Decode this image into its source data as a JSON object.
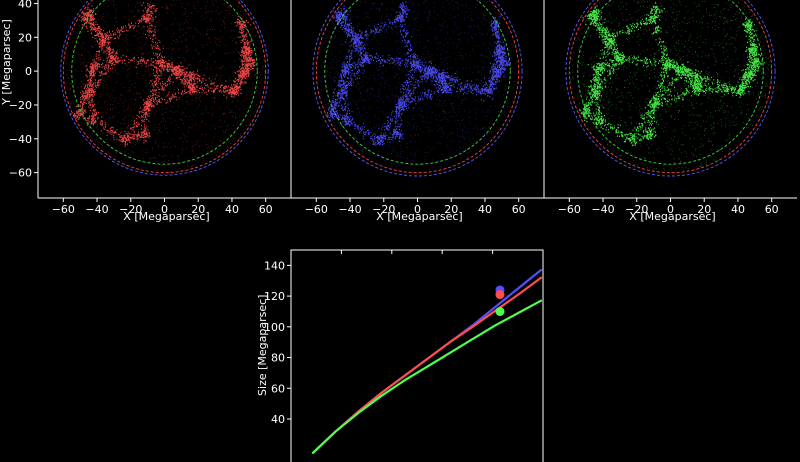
{
  "colors": {
    "red": "#ff4d4d",
    "blue": "#5050ff",
    "green": "#4dff4d",
    "ring_red": "#ff4040",
    "ring_blue": "#5a5aff",
    "ring_green": "#40d040",
    "background": "#000000",
    "foreground": "#ffffff"
  },
  "chart_data": [
    {
      "type": "scatter",
      "xlabel": "X [Megaparsec]",
      "ylabel": "Y [Megaparsec]",
      "xlim": [
        -75,
        75
      ],
      "ylim": [
        -75,
        45
      ],
      "xticks": [
        -60,
        -40,
        -20,
        0,
        20,
        40,
        60
      ],
      "yticks": [
        -60,
        -40,
        -20,
        0,
        20,
        40
      ],
      "color": "red",
      "points": "dense galaxy distribution (filaments) inside circle of radius ~62",
      "rings": [
        {
          "r": 61.5,
          "color": "blue"
        },
        {
          "r": 60,
          "color": "red"
        },
        {
          "r": 55,
          "color": "green"
        }
      ]
    },
    {
      "type": "scatter",
      "xlabel": "X [Megaparsec]",
      "xlim": [
        -75,
        75
      ],
      "ylim": [
        -75,
        45
      ],
      "xticks": [
        -60,
        -40,
        -20,
        0,
        20,
        40,
        60
      ],
      "yticks": [
        -60,
        -40,
        -20,
        0,
        20,
        40
      ],
      "color": "blue",
      "rings": [
        {
          "r": 62,
          "color": "blue"
        },
        {
          "r": 60,
          "color": "red"
        },
        {
          "r": 55,
          "color": "green"
        }
      ]
    },
    {
      "type": "scatter",
      "xlabel": "X [Megaparsec]",
      "xlim": [
        -75,
        75
      ],
      "ylim": [
        -75,
        45
      ],
      "xticks": [
        -60,
        -40,
        -20,
        0,
        20,
        40,
        60
      ],
      "yticks": [
        -60,
        -40,
        -20,
        0,
        20,
        40
      ],
      "color": "green",
      "rings": [
        {
          "r": 62,
          "color": "blue"
        },
        {
          "r": 60,
          "color": "red"
        },
        {
          "r": 55,
          "color": "green"
        }
      ]
    },
    {
      "type": "line",
      "ylabel": "Size [Megaparsec]",
      "yticks": [
        40,
        60,
        80,
        100,
        120,
        140
      ],
      "ylim": [
        12,
        150
      ],
      "series": [
        {
          "color": "blue",
          "x": [
            0.0,
            0.1,
            0.2,
            0.3,
            0.4,
            0.5,
            0.6,
            0.7,
            0.8,
            0.9,
            1.0
          ],
          "y": [
            18,
            32,
            45,
            57,
            68,
            79,
            90,
            101,
            113,
            125,
            137
          ],
          "marker": {
            "x": 0.82,
            "y": 124
          }
        },
        {
          "color": "red",
          "x": [
            0.0,
            0.1,
            0.2,
            0.3,
            0.4,
            0.5,
            0.6,
            0.7,
            0.8,
            0.9,
            1.0
          ],
          "y": [
            18,
            32,
            45,
            57,
            68,
            79,
            90,
            100,
            110.5,
            121,
            132
          ],
          "marker": {
            "x": 0.82,
            "y": 121
          }
        },
        {
          "color": "green",
          "x": [
            0.0,
            0.1,
            0.2,
            0.3,
            0.4,
            0.5,
            0.6,
            0.7,
            0.8,
            0.9,
            1.0
          ],
          "y": [
            18,
            32,
            44,
            55,
            65,
            74,
            83,
            92,
            101,
            109,
            117
          ],
          "marker": {
            "x": 0.82,
            "y": 110
          }
        }
      ]
    }
  ]
}
